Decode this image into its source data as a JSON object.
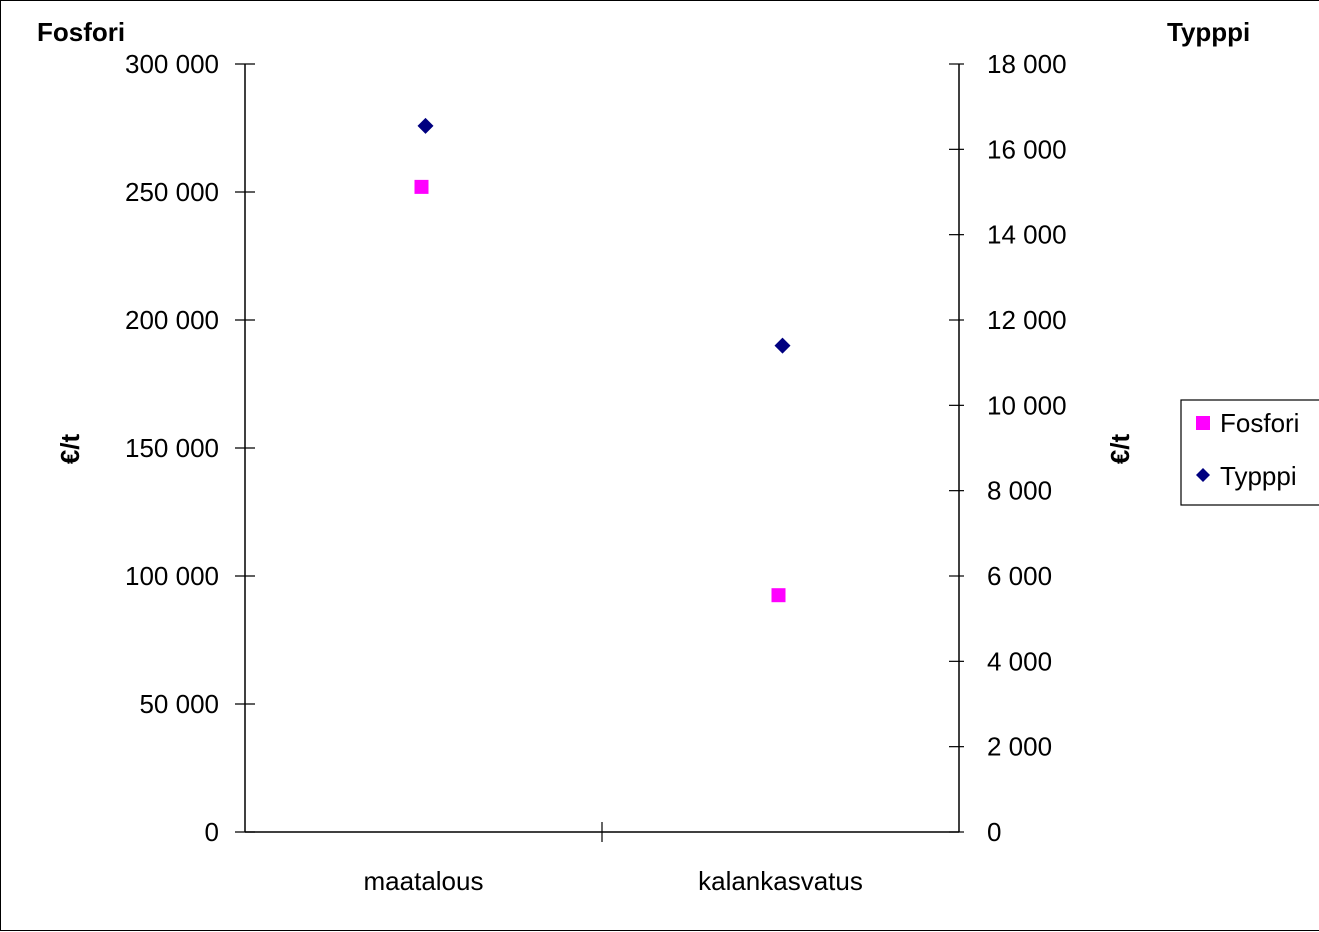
{
  "chart_data": {
    "type": "scatter",
    "categories": [
      "maatalous",
      "kalankasvatus"
    ],
    "series": [
      {
        "name": "Fosfori",
        "axis": "left",
        "marker": "square",
        "color": "#FF00FF",
        "values": [
          252000,
          92500
        ]
      },
      {
        "name": "Typppi",
        "axis": "right",
        "marker": "diamond",
        "color": "#000080",
        "values": [
          16550,
          11400
        ]
      }
    ],
    "y_left": {
      "title": "Fosfori",
      "label": "€/t",
      "ylim": [
        0,
        300000
      ],
      "ticks": [
        "0",
        "50 000",
        "100 000",
        "150 000",
        "200 000",
        "250 000",
        "300 000"
      ]
    },
    "y_right": {
      "title": "Typppi",
      "label": "€/t",
      "ylim": [
        0,
        18000
      ],
      "ticks": [
        "0",
        "2 000",
        "4 000",
        "6 000",
        "8 000",
        "10 000",
        "12 000",
        "14 000",
        "16 000",
        "18 000"
      ]
    },
    "grid": false,
    "legend_position": "right"
  }
}
